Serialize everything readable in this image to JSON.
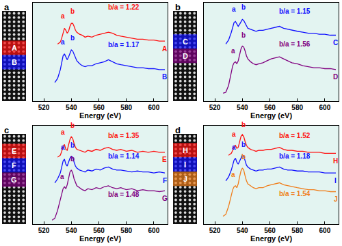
{
  "chart_data": [
    {
      "type": "line",
      "panel_label": "a",
      "xlabel": "Energy (eV)",
      "xlim": [
        512,
        610
      ],
      "xticks": [
        520,
        540,
        560,
        580,
        600
      ],
      "ylim": [
        0,
        10
      ],
      "tick_labels": "x",
      "x": [
        526,
        528,
        530,
        532,
        533,
        534,
        535,
        536,
        537,
        538,
        539,
        540,
        541,
        542,
        543,
        544,
        546,
        548,
        550,
        552,
        555,
        558,
        561,
        564,
        567,
        570,
        573,
        576,
        580,
        584,
        588,
        592,
        596,
        600,
        604,
        608
      ],
      "series": [
        {
          "name": "A",
          "color": "#ff1010",
          "values": [
            null,
            null,
            5.8,
            6.0,
            6.4,
            7.0,
            7.4,
            7.2,
            6.9,
            7.1,
            7.6,
            7.9,
            7.9,
            7.6,
            7.2,
            7.0,
            6.8,
            6.7,
            6.5,
            6.6,
            6.5,
            6.7,
            6.8,
            6.9,
            7.0,
            6.9,
            6.7,
            6.6,
            6.5,
            6.4,
            6.3,
            6.3,
            6.2,
            6.2,
            6.1,
            6.1
          ],
          "peaks": [
            {
              "text": "a",
              "x": 534,
              "y": 8.1
            },
            {
              "text": "b",
              "x": 541,
              "y": 8.6
            }
          ],
          "ratio": {
            "text": "b/a = 1.22",
            "x": 578,
            "y": 9.0
          }
        },
        {
          "name": "B",
          "color": "#1010ff",
          "values": [
            null,
            1.9,
            2.3,
            3.2,
            3.9,
            4.6,
            4.8,
            4.5,
            4.2,
            4.5,
            4.9,
            5.2,
            5.1,
            4.8,
            4.4,
            4.1,
            3.8,
            3.6,
            3.5,
            3.6,
            3.6,
            3.8,
            3.9,
            4.0,
            4.2,
            4.0,
            3.8,
            3.7,
            3.6,
            3.5,
            3.4,
            3.4,
            3.3,
            3.3,
            3.2,
            3.2
          ],
          "peaks": [
            {
              "text": "a",
              "x": 534,
              "y": 5.5
            },
            {
              "text": "b",
              "x": 541,
              "y": 5.9
            }
          ],
          "ratio": {
            "text": "b/a = 1.17",
            "x": 578,
            "y": 5.2
          }
        }
      ]
    },
    {
      "type": "line",
      "panel_label": "b",
      "xlabel": "Energy (eV)",
      "xlim": [
        512,
        610
      ],
      "xticks": [
        520,
        540,
        560,
        580,
        600
      ],
      "ylim": [
        0,
        10
      ],
      "tick_labels": "x",
      "x": [
        526,
        528,
        530,
        532,
        533,
        534,
        535,
        536,
        537,
        538,
        539,
        540,
        541,
        542,
        543,
        544,
        546,
        548,
        550,
        552,
        555,
        558,
        561,
        564,
        567,
        570,
        573,
        576,
        580,
        584,
        588,
        592,
        596,
        600,
        604,
        608
      ],
      "series": [
        {
          "name": "C",
          "color": "#1010ff",
          "values": [
            null,
            5.8,
            6.2,
            7.0,
            7.6,
            8.0,
            8.1,
            7.8,
            7.6,
            7.8,
            8.1,
            8.3,
            8.2,
            7.9,
            7.6,
            7.4,
            7.3,
            7.2,
            7.1,
            7.2,
            7.2,
            7.3,
            7.4,
            7.5,
            7.6,
            7.4,
            7.3,
            7.2,
            7.1,
            7.0,
            6.9,
            6.9,
            6.8,
            6.8,
            6.7,
            6.7
          ],
          "peaks": [
            {
              "text": "a",
              "x": 534,
              "y": 8.8
            },
            {
              "text": "b",
              "x": 541,
              "y": 9.0
            }
          ],
          "ratio": {
            "text": "b/a = 1.15",
            "x": 578,
            "y": 8.6
          }
        },
        {
          "name": "D",
          "color": "#800080",
          "values": [
            0.8,
            0.9,
            1.6,
            3.0,
            3.6,
            3.9,
            4.0,
            3.8,
            4.1,
            4.7,
            5.3,
            5.6,
            5.5,
            5.1,
            4.6,
            4.3,
            4.0,
            3.8,
            3.7,
            3.8,
            3.9,
            4.1,
            4.3,
            4.4,
            4.5,
            4.3,
            4.1,
            3.9,
            3.8,
            3.6,
            3.5,
            3.4,
            3.4,
            3.3,
            3.3,
            3.2
          ],
          "peaks": [
            {
              "text": "a",
              "x": 533.5,
              "y": 4.6
            },
            {
              "text": "b",
              "x": 541,
              "y": 6.2
            }
          ],
          "ratio": {
            "text": "b/a = 1.56",
            "x": 578,
            "y": 5.3
          }
        }
      ]
    },
    {
      "type": "line",
      "panel_label": "c",
      "xlabel": "Energy (eV)",
      "xlim": [
        512,
        610
      ],
      "xticks": [
        520,
        540,
        560,
        580,
        600
      ],
      "ylim": [
        0,
        10
      ],
      "tick_labels": "x",
      "x": [
        526,
        528,
        530,
        532,
        533,
        534,
        535,
        536,
        537,
        538,
        539,
        540,
        541,
        542,
        543,
        544,
        546,
        548,
        550,
        552,
        555,
        558,
        561,
        564,
        567,
        570,
        573,
        576,
        580,
        584,
        588,
        592,
        596,
        600,
        604,
        608
      ],
      "series": [
        {
          "name": "E",
          "color": "#ff1010",
          "values": [
            null,
            null,
            6.8,
            7.0,
            7.4,
            7.9,
            8.1,
            7.6,
            7.5,
            8.0,
            8.6,
            8.9,
            8.7,
            8.2,
            7.8,
            7.6,
            7.5,
            7.4,
            7.3,
            7.5,
            7.4,
            7.6,
            7.5,
            7.7,
            7.8,
            7.6,
            7.5,
            7.6,
            7.4,
            7.5,
            7.3,
            7.4,
            7.3,
            7.4,
            7.3,
            7.3
          ],
          "peaks": [
            {
              "text": "a",
              "x": 534,
              "y": 8.8
            },
            {
              "text": "b",
              "x": 541,
              "y": 9.5
            }
          ],
          "ratio": {
            "text": "b/a = 1.35",
            "x": 578,
            "y": 8.5
          }
        },
        {
          "name": "F",
          "color": "#1010ff",
          "values": [
            null,
            4.2,
            4.6,
            5.2,
            5.8,
            6.4,
            6.6,
            6.1,
            5.9,
            6.3,
            6.7,
            6.9,
            6.8,
            6.3,
            5.9,
            5.7,
            5.5,
            5.4,
            5.3,
            5.5,
            5.4,
            5.6,
            5.5,
            5.7,
            5.8,
            5.6,
            5.5,
            5.5,
            5.4,
            5.3,
            5.4,
            5.3,
            5.3,
            5.2,
            5.3,
            5.2
          ],
          "peaks": [
            {
              "text": "a",
              "x": 534,
              "y": 7.3
            },
            {
              "text": "b",
              "x": 541,
              "y": 7.5
            }
          ],
          "ratio": {
            "text": "b/a = 1.14",
            "x": 578,
            "y": 6.4
          }
        },
        {
          "name": "G",
          "color": "#800080",
          "values": [
            0.4,
            0.6,
            1.4,
            2.6,
            3.2,
            3.6,
            3.8,
            3.6,
            4.0,
            4.7,
            5.3,
            5.5,
            5.2,
            4.6,
            4.2,
            3.9,
            3.7,
            3.5,
            3.4,
            3.6,
            3.5,
            3.7,
            3.6,
            3.8,
            3.9,
            3.7,
            3.6,
            3.7,
            3.5,
            3.6,
            3.4,
            3.5,
            3.4,
            3.4,
            3.3,
            3.4
          ],
          "peaks": [
            {
              "text": "a",
              "x": 533.5,
              "y": 4.3
            },
            {
              "text": "b",
              "x": 541,
              "y": 6.1
            }
          ],
          "ratio": {
            "text": "b/a = 1.48",
            "x": 578,
            "y": 2.5
          }
        }
      ]
    },
    {
      "type": "line",
      "panel_label": "d",
      "xlabel": "Energy (eV)",
      "xlim": [
        512,
        610
      ],
      "xticks": [
        520,
        540,
        560,
        580,
        600
      ],
      "ylim": [
        0,
        10
      ],
      "tick_labels": "x",
      "x": [
        526,
        528,
        530,
        532,
        533,
        534,
        535,
        536,
        537,
        538,
        539,
        540,
        541,
        542,
        543,
        544,
        546,
        548,
        550,
        552,
        555,
        558,
        561,
        564,
        567,
        570,
        573,
        576,
        580,
        584,
        588,
        592,
        596,
        600,
        604,
        608
      ],
      "series": [
        {
          "name": "H",
          "color": "#ff1010",
          "values": [
            null,
            null,
            7.0,
            7.2,
            7.5,
            7.9,
            8.0,
            7.7,
            7.8,
            8.4,
            8.9,
            9.1,
            8.9,
            8.4,
            8.0,
            7.8,
            7.6,
            7.5,
            7.4,
            7.5,
            7.5,
            7.6,
            7.6,
            7.7,
            7.8,
            7.6,
            7.5,
            7.5,
            7.4,
            7.4,
            7.3,
            7.3,
            7.3,
            7.2,
            7.2,
            7.2
          ],
          "peaks": [
            {
              "text": "a",
              "x": 534,
              "y": 8.6
            },
            {
              "text": "b",
              "x": 541,
              "y": 9.6
            }
          ],
          "ratio": {
            "text": "b/a = 1.52",
            "x": 578,
            "y": 8.5
          }
        },
        {
          "name": "I",
          "color": "#1010ff",
          "values": [
            null,
            4.4,
            4.8,
            5.5,
            6.0,
            6.5,
            6.7,
            6.3,
            6.1,
            6.4,
            6.8,
            7.0,
            6.9,
            6.4,
            6.0,
            5.8,
            5.6,
            5.5,
            5.4,
            5.5,
            5.5,
            5.6,
            5.6,
            5.7,
            5.8,
            5.6,
            5.5,
            5.5,
            5.4,
            5.4,
            5.3,
            5.3,
            5.3,
            5.2,
            5.2,
            5.2
          ],
          "peaks": [
            {
              "text": "a",
              "x": 534,
              "y": 7.3
            },
            {
              "text": "b",
              "x": 541,
              "y": 7.6
            }
          ],
          "ratio": {
            "text": "b/a = 1.18",
            "x": 578,
            "y": 6.4
          }
        },
        {
          "name": "J",
          "color": "#f07d1a",
          "values": [
            0.8,
            1.0,
            1.8,
            3.0,
            3.5,
            3.8,
            3.9,
            3.7,
            4.1,
            4.8,
            5.4,
            5.7,
            5.5,
            4.9,
            4.4,
            4.1,
            3.9,
            3.7,
            3.6,
            3.7,
            3.7,
            3.9,
            4.0,
            4.1,
            4.2,
            4.0,
            3.9,
            3.8,
            3.7,
            3.6,
            3.5,
            3.5,
            3.4,
            3.4,
            3.3,
            3.3
          ],
          "peaks": [
            {
              "text": "a",
              "x": 533.5,
              "y": 4.5
            },
            {
              "text": "b",
              "x": 541,
              "y": 6.3
            }
          ],
          "ratio": {
            "text": "b/a = 1.54",
            "x": 578,
            "y": 2.6
          }
        }
      ]
    }
  ]
}
